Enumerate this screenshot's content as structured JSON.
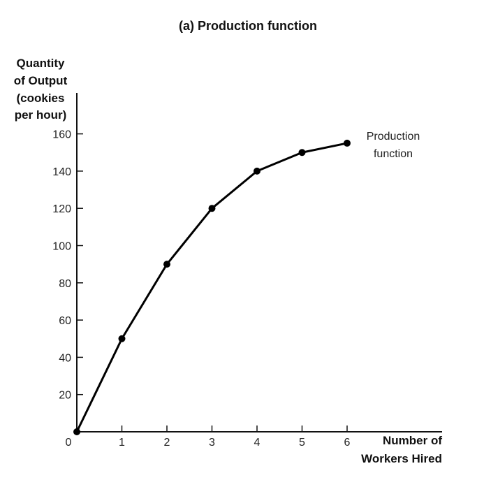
{
  "chart_data": {
    "type": "line",
    "title": "(a) Production function",
    "ylabel_lines": [
      "Quantity",
      "of Output",
      "(cookies",
      "per hour)"
    ],
    "xlabel_lines": [
      "Number of",
      "Workers Hired"
    ],
    "x": [
      0,
      1,
      2,
      3,
      4,
      5,
      6
    ],
    "series": [
      {
        "name": "",
        "values": [
          0,
          50,
          90,
          120,
          140,
          150,
          155
        ]
      }
    ],
    "xlim": [
      0,
      6
    ],
    "ylim": [
      0,
      160
    ],
    "xticks": [
      0,
      1,
      2,
      3,
      4,
      5,
      6
    ],
    "yticks": [
      0,
      20,
      40,
      60,
      80,
      100,
      120,
      140,
      160
    ],
    "origin_label": "0",
    "annotation_lines": [
      "Production",
      "function"
    ],
    "grid": false,
    "line_color": "#000000"
  }
}
